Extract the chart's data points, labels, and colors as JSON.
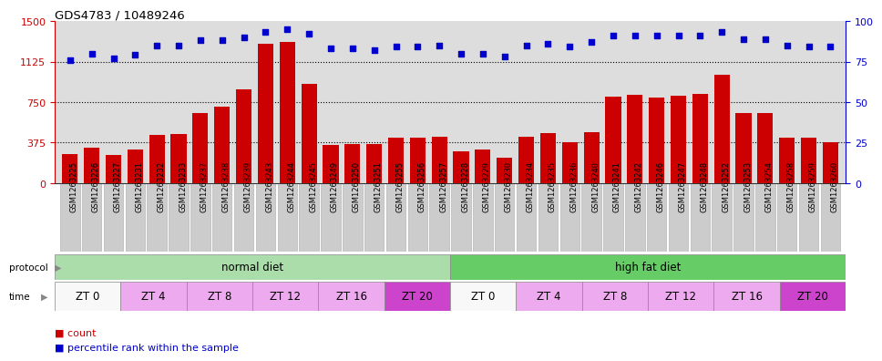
{
  "title": "GDS4783 / 10489246",
  "samples": [
    "GSM1263225",
    "GSM1263226",
    "GSM1263227",
    "GSM1263231",
    "GSM1263232",
    "GSM1263233",
    "GSM1263237",
    "GSM1263238",
    "GSM1263239",
    "GSM1263243",
    "GSM1263244",
    "GSM1263245",
    "GSM1263249",
    "GSM1263250",
    "GSM1263251",
    "GSM1263255",
    "GSM1263256",
    "GSM1263257",
    "GSM1263228",
    "GSM1263229",
    "GSM1263230",
    "GSM1263234",
    "GSM1263235",
    "GSM1263236",
    "GSM1263240",
    "GSM1263241",
    "GSM1263242",
    "GSM1263246",
    "GSM1263247",
    "GSM1263248",
    "GSM1263252",
    "GSM1263253",
    "GSM1263254",
    "GSM1263258",
    "GSM1263259",
    "GSM1263260"
  ],
  "counts": [
    270,
    330,
    265,
    310,
    450,
    455,
    650,
    710,
    870,
    1290,
    1310,
    920,
    355,
    360,
    360,
    420,
    420,
    430,
    295,
    310,
    240,
    430,
    460,
    380,
    470,
    800,
    820,
    790,
    810,
    825,
    1000,
    650,
    650,
    420,
    420,
    380
  ],
  "percentiles": [
    76,
    80,
    77,
    79,
    85,
    85,
    88,
    88,
    90,
    93,
    95,
    92,
    83,
    83,
    82,
    84,
    84,
    85,
    80,
    80,
    78,
    85,
    86,
    84,
    87,
    91,
    91,
    91,
    91,
    91,
    93,
    89,
    89,
    85,
    84,
    84
  ],
  "ylim_left": [
    0,
    1500
  ],
  "ylim_right": [
    0,
    100
  ],
  "yticks_left": [
    0,
    375,
    750,
    1125,
    1500
  ],
  "yticks_right": [
    0,
    25,
    50,
    75,
    100
  ],
  "bar_color": "#cc0000",
  "dot_color": "#0000cc",
  "protocol_groups": [
    {
      "label": "normal diet",
      "start": 0,
      "end": 18,
      "color": "#aaddaa"
    },
    {
      "label": "high fat diet",
      "start": 18,
      "end": 36,
      "color": "#66cc66"
    }
  ],
  "time_groups": [
    {
      "label": "ZT 0",
      "start": 0,
      "end": 3,
      "color": "#f8f8f8"
    },
    {
      "label": "ZT 4",
      "start": 3,
      "end": 6,
      "color": "#eeaaee"
    },
    {
      "label": "ZT 8",
      "start": 6,
      "end": 9,
      "color": "#eeaaee"
    },
    {
      "label": "ZT 12",
      "start": 9,
      "end": 12,
      "color": "#eeaaee"
    },
    {
      "label": "ZT 16",
      "start": 12,
      "end": 15,
      "color": "#eeaaee"
    },
    {
      "label": "ZT 20",
      "start": 15,
      "end": 18,
      "color": "#cc44cc"
    },
    {
      "label": "ZT 0",
      "start": 18,
      "end": 21,
      "color": "#f8f8f8"
    },
    {
      "label": "ZT 4",
      "start": 21,
      "end": 24,
      "color": "#eeaaee"
    },
    {
      "label": "ZT 8",
      "start": 24,
      "end": 27,
      "color": "#eeaaee"
    },
    {
      "label": "ZT 12",
      "start": 27,
      "end": 30,
      "color": "#eeaaee"
    },
    {
      "label": "ZT 16",
      "start": 30,
      "end": 33,
      "color": "#eeaaee"
    },
    {
      "label": "ZT 20",
      "start": 33,
      "end": 36,
      "color": "#cc44cc"
    }
  ],
  "bg_color": "#ffffff",
  "axis_bg": "#dddddd",
  "left_label_color": "#cc0000",
  "right_label_color": "#0000cc",
  "xtick_bg": "#cccccc",
  "xtick_border": "#aaaaaa"
}
